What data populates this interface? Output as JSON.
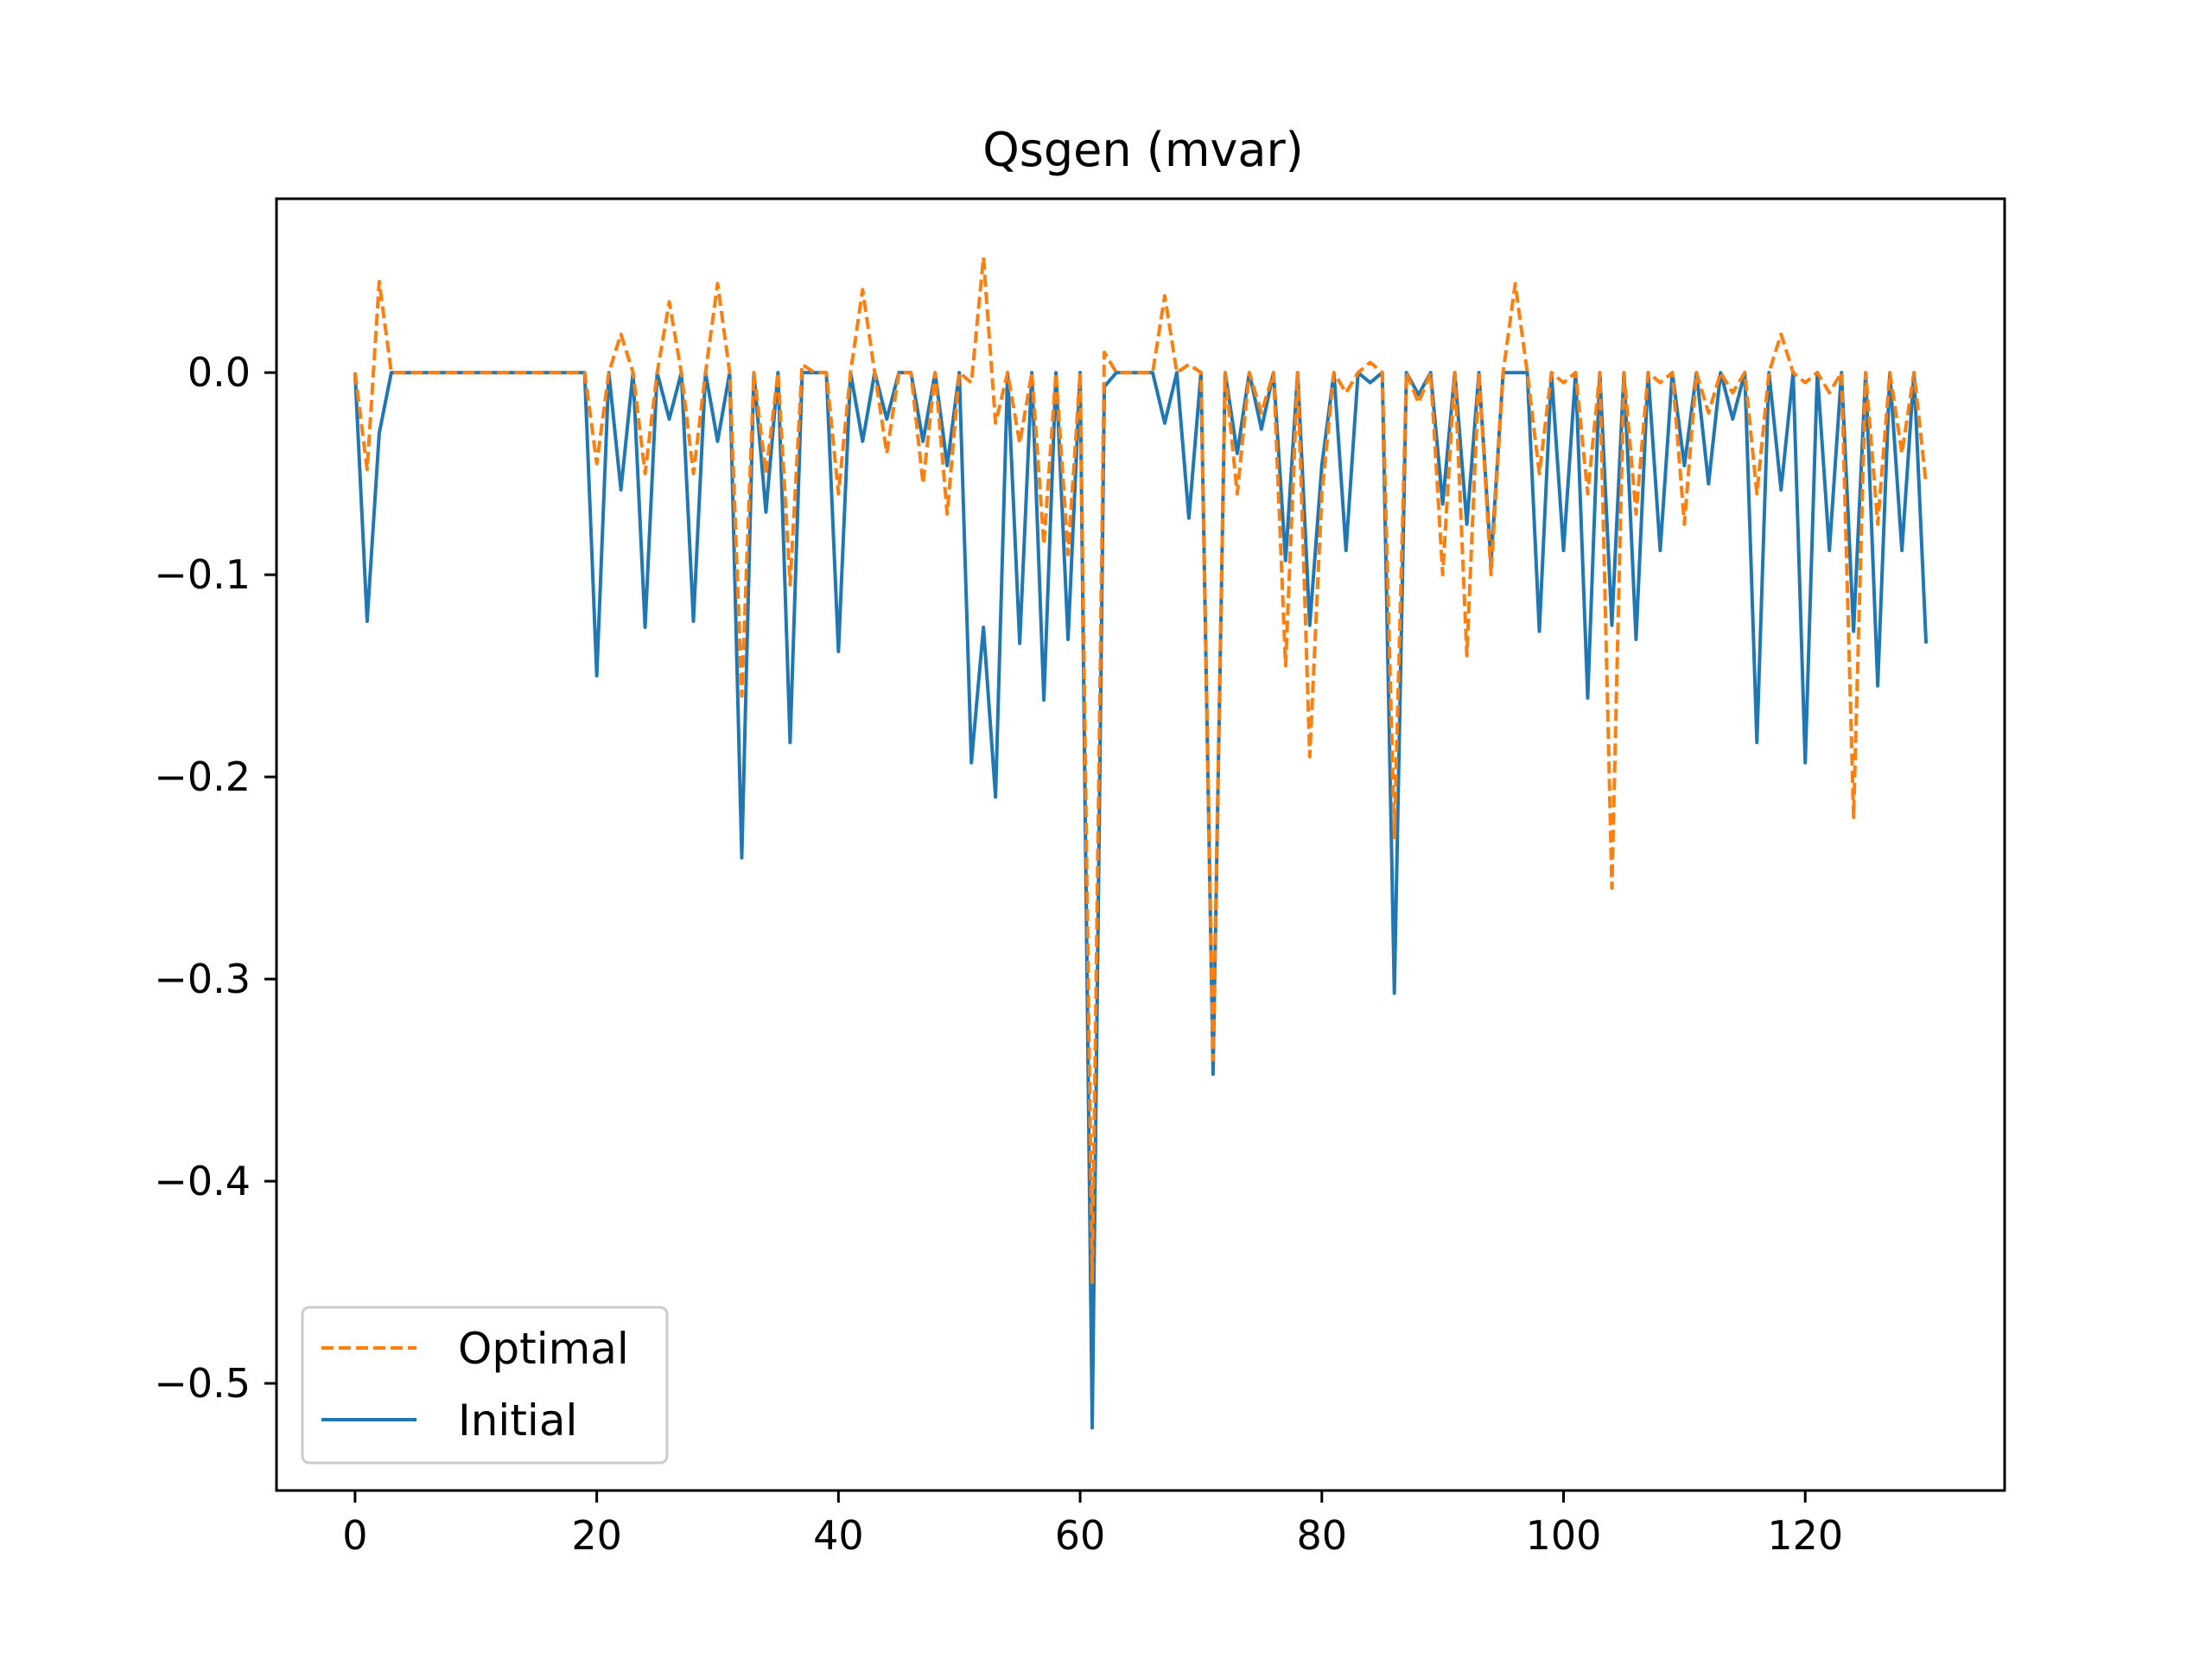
{
  "chart_data": {
    "type": "line",
    "title": "Qsgen (mvar)",
    "xlabel": "",
    "ylabel": "",
    "xlim": [
      -6.5,
      136.5
    ],
    "ylim": [
      -0.553,
      0.086
    ],
    "x_ticks": [
      0,
      20,
      40,
      60,
      80,
      100,
      120
    ],
    "x_tick_labels": [
      "0",
      "20",
      "40",
      "60",
      "80",
      "100",
      "120"
    ],
    "y_ticks": [
      0.0,
      -0.1,
      -0.2,
      -0.3,
      -0.4,
      -0.5
    ],
    "y_tick_labels": [
      "0.0",
      "−0.1",
      "−0.2",
      "−0.3",
      "−0.4",
      "−0.5"
    ],
    "grid": false,
    "legend_position": "lower-left",
    "series": [
      {
        "name": "Optimal",
        "color": "#ff7f0e",
        "style": "dashed",
        "values": [
          0.0,
          -0.048,
          0.045,
          0.0,
          0.0,
          0.0,
          0.0,
          0.0,
          0.0,
          0.0,
          0.0,
          0.0,
          0.0,
          0.0,
          0.0,
          0.0,
          0.0,
          0.0,
          0.0,
          0.0,
          -0.045,
          0.0,
          0.019,
          0.0,
          -0.05,
          0.0,
          0.035,
          0.0,
          -0.05,
          0.0,
          0.044,
          0.0,
          -0.16,
          0.0,
          -0.05,
          0.0,
          -0.105,
          0.004,
          0.0,
          0.0,
          -0.06,
          0.0,
          0.041,
          0.0,
          -0.04,
          0.0,
          0.0,
          -0.055,
          0.0,
          -0.07,
          0.0,
          -0.005,
          0.057,
          -0.025,
          0.0,
          -0.035,
          0.0,
          -0.085,
          0.0,
          -0.09,
          0.0,
          -0.45,
          0.01,
          0.0,
          0.0,
          0.0,
          0.0,
          0.038,
          0.0,
          0.004,
          0.0,
          -0.34,
          0.0,
          -0.06,
          0.0,
          -0.02,
          0.0,
          -0.145,
          0.0,
          -0.19,
          -0.06,
          0.0,
          -0.01,
          0.0,
          0.005,
          0.0,
          -0.23,
          0.0,
          -0.015,
          0.0,
          -0.1,
          0.0,
          -0.14,
          0.0,
          -0.1,
          0.0,
          0.044,
          0.0,
          -0.05,
          0.0,
          -0.005,
          0.0,
          -0.06,
          0.0,
          -0.255,
          0.0,
          -0.07,
          0.0,
          -0.005,
          0.0,
          -0.075,
          0.0,
          -0.02,
          0.0,
          -0.01,
          0.0,
          -0.06,
          0.0,
          0.019,
          0.0,
          -0.005,
          0.0,
          -0.01,
          0.0,
          -0.22,
          0.0,
          -0.075,
          0.0,
          -0.04,
          0.0,
          -0.055
        ]
      },
      {
        "name": "Initial",
        "color": "#1f77b4",
        "style": "solid",
        "values": [
          0.0,
          -0.123,
          -0.03,
          0.0,
          0.0,
          0.0,
          0.0,
          0.0,
          0.0,
          0.0,
          0.0,
          0.0,
          0.0,
          0.0,
          0.0,
          0.0,
          0.0,
          0.0,
          0.0,
          0.0,
          -0.15,
          0.0,
          -0.058,
          0.0,
          -0.126,
          0.0,
          -0.023,
          0.0,
          -0.123,
          0.0,
          -0.034,
          0.0,
          -0.24,
          0.0,
          -0.069,
          0.0,
          -0.183,
          0.0,
          0.0,
          0.0,
          -0.138,
          0.0,
          -0.034,
          0.0,
          -0.023,
          0.0,
          0.0,
          -0.034,
          0.0,
          -0.046,
          0.0,
          -0.193,
          -0.126,
          -0.21,
          0.0,
          -0.134,
          0.0,
          -0.162,
          0.0,
          -0.132,
          0.0,
          -0.522,
          -0.007,
          0.0,
          0.0,
          0.0,
          0.0,
          -0.025,
          0.0,
          -0.072,
          0.0,
          -0.347,
          0.0,
          -0.04,
          0.0,
          -0.028,
          0.0,
          -0.093,
          0.0,
          -0.125,
          -0.046,
          0.0,
          -0.088,
          0.0,
          -0.005,
          0.0,
          -0.307,
          0.0,
          -0.011,
          0.0,
          -0.065,
          0.0,
          -0.075,
          0.0,
          -0.094,
          0.0,
          0.0,
          0.0,
          -0.128,
          0.0,
          -0.088,
          0.0,
          -0.161,
          0.0,
          -0.125,
          0.0,
          -0.132,
          0.0,
          -0.088,
          0.0,
          -0.046,
          0.0,
          -0.055,
          0.0,
          -0.023,
          0.0,
          -0.183,
          0.0,
          -0.058,
          0.0,
          -0.193,
          0.0,
          -0.088,
          0.0,
          -0.128,
          0.0,
          -0.155,
          0.0,
          -0.088,
          0.0,
          -0.134
        ]
      }
    ]
  }
}
